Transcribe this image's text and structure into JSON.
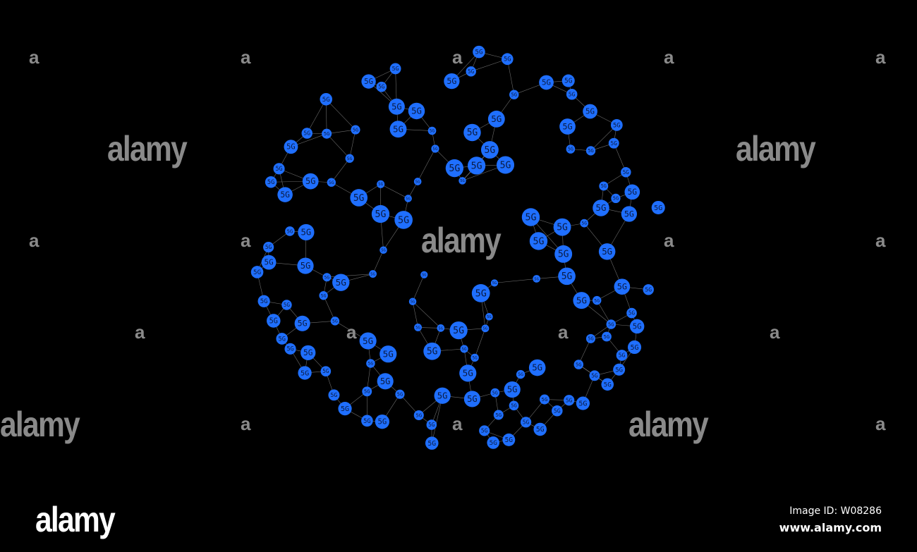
{
  "graphic": {
    "node_label": "5G",
    "node_color": "#1f6fff",
    "edge_color": "#9a9a9a",
    "background": "#000000"
  },
  "watermark": {
    "text": "alamy",
    "letter": "a",
    "color": "#8a8a8a"
  },
  "footer": {
    "logo": "alamy",
    "image_id": "Image ID: W08286",
    "site": "www.alamy.com"
  }
}
